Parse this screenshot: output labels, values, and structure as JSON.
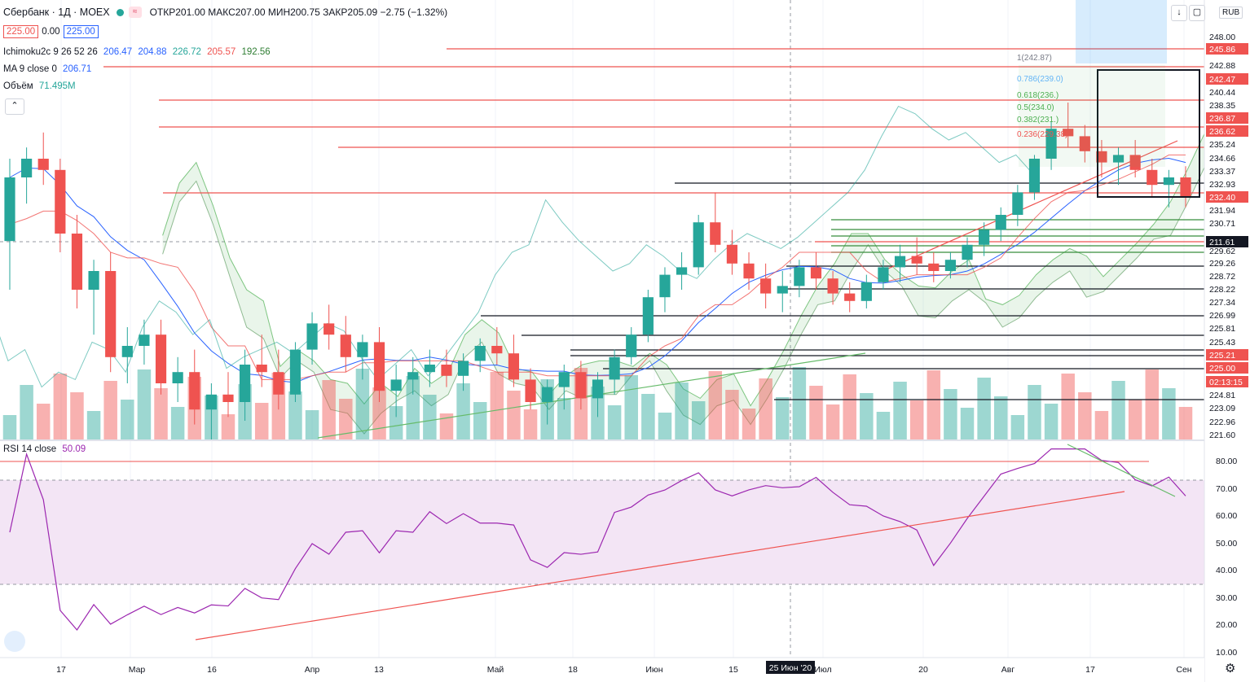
{
  "header": {
    "symbol": "Сбербанк · 1Д · MOEX",
    "icon_chip": "≈",
    "ohlc_text": "ОТКР201.00 МАКС207.00 МИН200.75 ЗАКР205.09 −2.75 (−1.32%)",
    "bid": "225.00",
    "spread": "0.00",
    "ask": "225.00",
    "currency": "RUB"
  },
  "indicators": {
    "ichimoku": {
      "label": "Ichimoku2c 9 26 52 26",
      "values": [
        "206.47",
        "204.88",
        "226.72",
        "205.57",
        "192.56"
      ]
    },
    "ma": {
      "label": "MA 9 close 0",
      "value": "206.71"
    },
    "volume": {
      "label": "Объём",
      "value": "71.495M"
    },
    "rsi": {
      "label": "RSI 14 close",
      "value": "50.09"
    }
  },
  "colors": {
    "up": "#26a69a",
    "down": "#ef5350",
    "cloud": "#4caf50",
    "rsi": "#9c27b0",
    "rsi_band": "#f3e5f5"
  },
  "chart_data": {
    "type": "candlestick",
    "x_labels": [
      "17",
      "Мар",
      "16",
      "Апр",
      "13",
      "Май",
      "18",
      "Июн",
      "15",
      "25 Июн '20",
      "Июл",
      "20",
      "Авг",
      "17",
      "Сен"
    ],
    "price_axis_labels": [
      "248.00",
      "245.86",
      "242.88",
      "242.47",
      "240.44",
      "238.35",
      "236.87",
      "236.62",
      "235.24",
      "234.66",
      "233.37",
      "232.93",
      "232.40",
      "231.94",
      "230.71",
      "211.61",
      "229.62",
      "229.26",
      "228.72",
      "228.22",
      "227.34",
      "226.99",
      "225.81",
      "225.43",
      "225.21",
      "225.00",
      "02:13:15",
      "224.81",
      "223.09",
      "222.96",
      "221.60"
    ],
    "fib_labels": [
      "1(242.87)",
      "0.786(239.0)",
      "0.618(236.)",
      "0.5(234.0)",
      "0.382(231.)",
      "0.236(229.38)"
    ],
    "rsi_axis_labels": [
      "80.00",
      "70.00",
      "60.00",
      "50.00",
      "40.00",
      "30.00",
      "20.00",
      "10.00"
    ],
    "rsi_levels": [
      70,
      30
    ],
    "candles": [
      [
        153,
        175,
        140,
        170
      ],
      [
        170,
        178,
        163,
        175
      ],
      [
        175,
        182,
        168,
        172
      ],
      [
        172,
        175,
        150,
        155
      ],
      [
        155,
        160,
        135,
        140
      ],
      [
        140,
        148,
        128,
        145
      ],
      [
        145,
        150,
        118,
        122
      ],
      [
        122,
        130,
        115,
        125
      ],
      [
        125,
        132,
        120,
        128
      ],
      [
        128,
        132,
        112,
        115
      ],
      [
        115,
        122,
        110,
        118
      ],
      [
        118,
        124,
        104,
        108
      ],
      [
        108,
        115,
        100,
        112
      ],
      [
        112,
        118,
        106,
        110
      ],
      [
        110,
        124,
        105,
        120
      ],
      [
        120,
        128,
        114,
        118
      ],
      [
        118,
        124,
        108,
        112
      ],
      [
        112,
        126,
        110,
        124
      ],
      [
        124,
        134,
        120,
        131
      ],
      [
        131,
        136,
        124,
        128
      ],
      [
        128,
        133,
        118,
        122
      ],
      [
        122,
        128,
        116,
        126
      ],
      [
        126,
        130,
        110,
        113
      ],
      [
        113,
        120,
        106,
        116
      ],
      [
        116,
        122,
        112,
        118
      ],
      [
        118,
        124,
        114,
        120
      ],
      [
        120,
        124,
        114,
        117
      ],
      [
        117,
        123,
        113,
        121
      ],
      [
        121,
        127,
        118,
        125
      ],
      [
        125,
        130,
        120,
        123
      ],
      [
        123,
        128,
        114,
        116
      ],
      [
        116,
        119,
        108,
        110
      ],
      [
        110,
        116,
        104,
        114
      ],
      [
        114,
        120,
        108,
        118
      ],
      [
        118,
        121,
        108,
        111
      ],
      [
        111,
        118,
        106,
        116
      ],
      [
        116,
        124,
        112,
        122
      ],
      [
        122,
        130,
        120,
        128
      ],
      [
        128,
        140,
        126,
        138
      ],
      [
        138,
        146,
        134,
        144
      ],
      [
        144,
        150,
        140,
        146
      ],
      [
        146,
        160,
        144,
        158
      ],
      [
        158,
        166,
        150,
        152
      ],
      [
        152,
        156,
        144,
        147
      ],
      [
        147,
        150,
        140,
        143
      ],
      [
        143,
        147,
        135,
        139
      ],
      [
        139,
        145,
        134,
        141
      ],
      [
        141,
        148,
        138,
        146
      ],
      [
        146,
        150,
        140,
        143
      ],
      [
        143,
        145,
        136,
        139
      ],
      [
        139,
        142,
        134,
        137
      ],
      [
        137,
        144,
        135,
        142
      ],
      [
        142,
        148,
        140,
        146
      ],
      [
        146,
        152,
        142,
        149
      ],
      [
        149,
        154,
        144,
        147
      ],
      [
        147,
        150,
        142,
        145
      ],
      [
        145,
        150,
        143,
        148
      ],
      [
        148,
        154,
        146,
        152
      ],
      [
        152,
        158,
        149,
        156
      ],
      [
        156,
        162,
        153,
        160
      ],
      [
        160,
        168,
        157,
        166
      ],
      [
        166,
        176,
        164,
        175
      ],
      [
        175,
        185,
        172,
        183
      ],
      [
        183,
        190,
        178,
        181
      ],
      [
        181,
        184,
        174,
        177
      ],
      [
        177,
        180,
        170,
        174
      ],
      [
        174,
        178,
        168,
        176
      ],
      [
        176,
        180,
        170,
        172
      ],
      [
        172,
        175,
        165,
        168
      ],
      [
        168,
        172,
        162,
        170
      ],
      [
        170,
        173,
        162,
        165
      ]
    ]
  }
}
